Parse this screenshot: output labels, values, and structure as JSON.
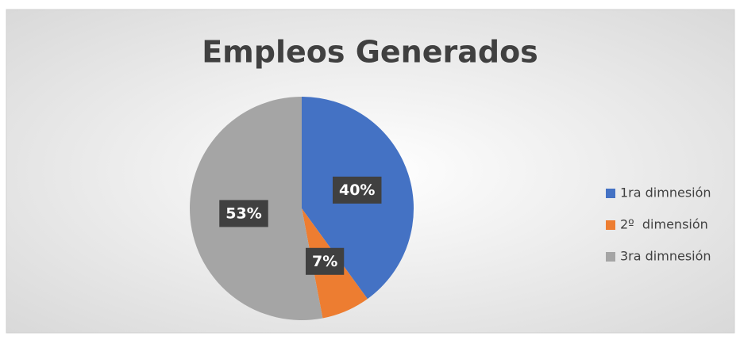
{
  "chart_data": {
    "type": "pie",
    "title": "Empleos Generados",
    "categories": [
      "1ra dimnesión",
      "2º  dimensión",
      "3ra dimnesión"
    ],
    "values": [
      40,
      7,
      53
    ],
    "value_labels": [
      "40%",
      "7%",
      "53%"
    ],
    "colors": [
      "#4472c4",
      "#ed7d31",
      "#a5a5a5"
    ],
    "legend": "right"
  }
}
